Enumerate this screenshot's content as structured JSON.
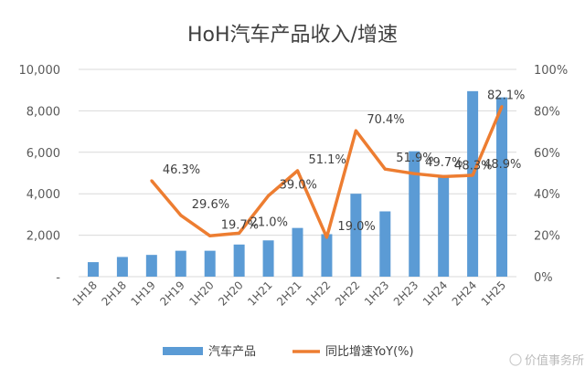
{
  "chart_data": {
    "type": "bar",
    "title": "HoH汽车产品收入/增速",
    "categories": [
      "1H18",
      "2H18",
      "1H19",
      "2H19",
      "1H20",
      "2H20",
      "1H21",
      "2H21",
      "1H22",
      "2H22",
      "1H23",
      "2H23",
      "1H24",
      "2H24",
      "1H25"
    ],
    "series": [
      {
        "name": "汽车产品",
        "type": "bar",
        "axis": "left",
        "color": "#5b9bd5",
        "values": [
          700,
          950,
          1050,
          1250,
          1250,
          1550,
          1750,
          2350,
          2050,
          4000,
          3150,
          6050,
          4900,
          8950,
          8650
        ]
      },
      {
        "name": "同比增速YoY(%)",
        "type": "line",
        "axis": "right",
        "color": "#ed7d31",
        "values": [
          null,
          null,
          46.3,
          29.6,
          19.7,
          21.0,
          39.0,
          51.1,
          19.0,
          70.4,
          51.9,
          49.7,
          48.3,
          48.9,
          82.1
        ],
        "labels": [
          "",
          "",
          "46.3%",
          "29.6%",
          "19.7%",
          "21.0%",
          "39.0%",
          "51.1%",
          "19.0%",
          "70.4%",
          "51.9%",
          "49.7%",
          "48.3%",
          "48.9%",
          "82.1%"
        ]
      }
    ],
    "y_left": {
      "min": 0,
      "max": 10000,
      "ticks": [
        "-",
        "2,000",
        "4,000",
        "6,000",
        "8,000",
        "10,000"
      ]
    },
    "y_right": {
      "min": 0,
      "max": 100,
      "ticks": [
        "0%",
        "20%",
        "40%",
        "60%",
        "80%",
        "100%"
      ]
    },
    "grid": true,
    "legend_position": "bottom"
  },
  "watermark": "价值事务所"
}
